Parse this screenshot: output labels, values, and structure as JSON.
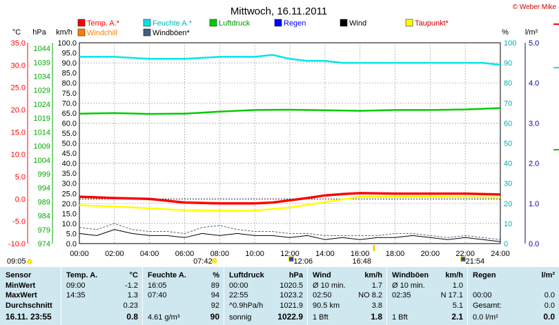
{
  "header": {
    "title": "Mittwoch, 16.11.2011",
    "credit": "© Weber Mike"
  },
  "chart_data": {
    "type": "line",
    "x_ticks": [
      "00:00",
      "02:00",
      "04:00",
      "06:00",
      "08:00",
      "10:00",
      "12:00",
      "14:00",
      "16:00",
      "18:00",
      "20:00",
      "22:00",
      "24:00"
    ],
    "axes": {
      "temp": {
        "label": "°C",
        "ylim": [
          -10,
          35
        ],
        "ticks": [
          "35.0",
          "30.0",
          "25.0",
          "20.0",
          "15.0",
          "10.0",
          "5.0",
          "0.0",
          "-5.0",
          "-10.0"
        ],
        "color": "#ff0000"
      },
      "pressure": {
        "label": "hPa",
        "ylim": [
          974,
          1046
        ],
        "ticks": [
          "1044",
          "1039",
          "1034",
          "1029",
          "1024",
          "1019",
          "1014",
          "1009",
          "1004",
          "999",
          "994",
          "989",
          "984",
          "979",
          "974"
        ],
        "color": "#00aa00"
      },
      "wind": {
        "label": "km/h",
        "ylim": [
          0,
          100
        ],
        "ticks": [
          "100.0",
          "95.0",
          "90.0",
          "85.0",
          "80.0",
          "75.0",
          "70.0",
          "65.0",
          "60.0",
          "55.0",
          "50.0",
          "45.0",
          "40.0",
          "35.0",
          "30.0",
          "25.0",
          "20.0",
          "15.0",
          "10.0",
          "5.0",
          "0.0"
        ],
        "color": "#000000"
      },
      "humidity": {
        "label": "%",
        "ylim": [
          0,
          100
        ],
        "ticks": [
          "100",
          "90",
          "80",
          "70",
          "60",
          "50",
          "40",
          "30",
          "20",
          "10",
          "0"
        ],
        "color": "#00c8c8"
      },
      "rain": {
        "label": "l/m²",
        "ylim": [
          0,
          5
        ],
        "ticks": [
          "5.0",
          "4.0",
          "3.0",
          "2.0",
          "1.0",
          "0.0"
        ],
        "color": "#0000aa"
      }
    },
    "legend": [
      {
        "name": "Temp. A.*",
        "color": "#ff0000"
      },
      {
        "name": "Feuchte A.*",
        "color": "#00e6e6"
      },
      {
        "name": "Luftdruck",
        "color": "#00cc00"
      },
      {
        "name": "Regen",
        "color": "#0000ff"
      },
      {
        "name": "Wind",
        "color": "#000000"
      },
      {
        "name": "Taupunkt*",
        "color": "#ffff00"
      },
      {
        "name": "Windchill",
        "color": "#ff8000"
      },
      {
        "name": "Windböen*",
        "color": "#406080"
      }
    ],
    "series": [
      {
        "name": "Temp. A.*",
        "axis": "temp",
        "x": [
          0,
          2,
          4,
          6,
          8,
          10,
          11,
          12,
          13,
          14,
          15,
          16,
          18,
          20,
          22,
          24
        ],
        "y": [
          0.5,
          0.2,
          0.0,
          -0.8,
          -1.0,
          -1.0,
          -0.8,
          -0.3,
          0.2,
          0.8,
          1.1,
          1.3,
          1.2,
          1.2,
          1.2,
          1.0
        ]
      },
      {
        "name": "Feuchte A.*",
        "axis": "humidity",
        "x": [
          0,
          2,
          4,
          6,
          8,
          10,
          11,
          12,
          13,
          14,
          15,
          16,
          18,
          20,
          22,
          23,
          24
        ],
        "y": [
          93,
          93,
          92,
          92,
          93,
          93,
          94,
          92,
          91,
          91,
          90,
          90,
          90,
          90,
          90,
          90,
          89
        ]
      },
      {
        "name": "Luftdruck",
        "axis": "pressure",
        "x": [
          0,
          2,
          4,
          6,
          8,
          10,
          12,
          14,
          16,
          18,
          20,
          22,
          24
        ],
        "y": [
          1020.6,
          1020.8,
          1020.5,
          1020.6,
          1021.3,
          1021.9,
          1022.0,
          1021.8,
          1021.6,
          1021.9,
          1021.9,
          1022.1,
          1022.6
        ]
      },
      {
        "name": "Taupunkt*",
        "axis": "temp",
        "x": [
          0,
          2,
          4,
          6,
          8,
          10,
          12,
          14,
          16,
          18,
          20,
          22,
          24
        ],
        "y": [
          -1.4,
          -1.7,
          -2.1,
          -2.5,
          -2.6,
          -2.6,
          -1.9,
          -0.7,
          0.5,
          0.5,
          0.5,
          0.4,
          0.3
        ]
      },
      {
        "name": "Wind",
        "axis": "wind",
        "x": [
          0,
          1,
          2,
          3,
          4,
          5,
          6,
          7,
          8,
          9,
          10,
          11,
          12,
          13,
          14,
          15,
          16,
          17,
          18,
          19,
          20,
          21,
          22,
          23,
          24
        ],
        "y": [
          5,
          4,
          7,
          5,
          4,
          4,
          3,
          5,
          4,
          5,
          4,
          4,
          3,
          4,
          2,
          3,
          2,
          3,
          3,
          4,
          3,
          2,
          3,
          2,
          1
        ]
      },
      {
        "name": "Windböen*",
        "axis": "wind",
        "x": [
          0,
          1,
          2,
          3,
          4,
          5,
          6,
          7,
          8,
          9,
          10,
          11,
          12,
          13,
          14,
          15,
          16,
          17,
          18,
          19,
          20,
          21,
          22,
          23,
          24
        ],
        "y": [
          8,
          7,
          10,
          7,
          6,
          6,
          5,
          8,
          9,
          7,
          6,
          6,
          5,
          5,
          4,
          4,
          4,
          4,
          5,
          5,
          4,
          3,
          4,
          3,
          2
        ]
      }
    ],
    "reference_lines": [
      {
        "axis": "temp",
        "y": 0.0
      }
    ],
    "markers": [
      {
        "time": "09:05",
        "type": "sunrise-icon"
      },
      {
        "time": "07:42",
        "type": "sun-icon"
      },
      {
        "time": "12:06",
        "type": "moon-icon"
      },
      {
        "time": "16:48",
        "type": "sunset-icon"
      },
      {
        "time": "21:54",
        "type": "moon-icon"
      }
    ]
  },
  "table": {
    "columns": [
      {
        "header": "Sensor",
        "rows": [
          "MinWert",
          "MaxWert",
          "Durchschnitt"
        ],
        "footer": "16.11. 23:55"
      },
      {
        "header": "Temp. A.",
        "unit": "°C",
        "rows": [
          [
            "09:00",
            "-1.2"
          ],
          [
            "14:35",
            "1.3"
          ],
          [
            "",
            "0.23"
          ]
        ],
        "footer": [
          "",
          "0.8"
        ]
      },
      {
        "header": "Feuchte A.",
        "unit": "%",
        "rows": [
          [
            "16:05",
            "89"
          ],
          [
            "07:40",
            "94"
          ],
          [
            "",
            "92"
          ]
        ],
        "footer": [
          "4.61 g/m³",
          "90"
        ]
      },
      {
        "header": "Luftdruck",
        "unit": "hPa",
        "rows": [
          [
            "00:00",
            "1020.5"
          ],
          [
            "22:55",
            "1023.2"
          ],
          [
            "^0.9hPa/h",
            "1021.9"
          ]
        ],
        "footer": [
          "sonnig",
          "1022.9"
        ]
      },
      {
        "header": "Wind",
        "unit": "km/h",
        "rows": [
          [
            "Ø 10 min.",
            "1.7"
          ],
          [
            "02:50",
            "NO 8.2"
          ],
          [
            "90.5 km",
            "3.8"
          ]
        ],
        "footer": [
          "1 Bft",
          "1.8"
        ]
      },
      {
        "header": "Windböen",
        "unit": "km/h",
        "rows": [
          [
            "Ø 10 min.",
            "1.0"
          ],
          [
            "02:35",
            "N 17.1"
          ],
          [
            "",
            "5.1"
          ]
        ],
        "footer": [
          "1 Bft",
          "2.1"
        ]
      },
      {
        "header": "Regen",
        "unit": "l/m²",
        "rows": [
          [
            "",
            ""
          ],
          [
            "00:00",
            "0.0"
          ],
          [
            "Gesamt:",
            "0.0"
          ]
        ],
        "footer": [
          "0.0 l/m²",
          "0.0"
        ]
      }
    ]
  }
}
